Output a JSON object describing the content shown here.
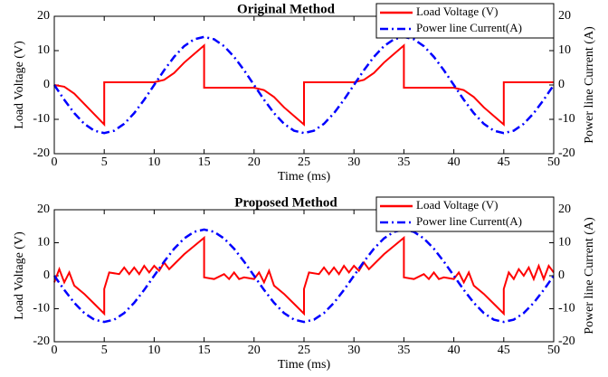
{
  "chart_data": [
    {
      "type": "line",
      "title": "Original Method",
      "xlabel": "Time (ms)",
      "ylabel": "Load Voltage (V)",
      "y2label": "Power line Current (A)",
      "xlim": [
        0,
        50
      ],
      "xticks": [
        0,
        5,
        10,
        15,
        20,
        25,
        30,
        35,
        40,
        45,
        50
      ],
      "ylim": [
        -20,
        20
      ],
      "yticks": [
        -20,
        -10,
        0,
        10,
        20
      ],
      "y2lim": [
        -20,
        20
      ],
      "y2ticks": [
        -20,
        -10,
        0,
        10,
        20
      ],
      "legend": "upper right",
      "series": [
        {
          "name": "Load Voltage (V)",
          "color": "#ff0000",
          "style": "solid",
          "x": [
            0,
            1,
            2,
            3,
            4,
            5,
            5,
            10,
            11,
            12,
            13,
            14,
            15,
            15,
            20,
            21,
            22,
            23,
            24,
            25,
            25,
            30,
            31,
            32,
            33,
            34,
            35,
            35,
            40,
            41,
            42,
            43,
            44,
            45,
            45,
            50
          ],
          "values": [
            0,
            -0.5,
            -2.5,
            -5.5,
            -8.5,
            -11.5,
            0.8,
            0.8,
            1.5,
            3.5,
            6.5,
            9,
            11.5,
            -0.8,
            -0.8,
            -1.5,
            -3.5,
            -6.5,
            -9,
            -11.5,
            0.8,
            0.8,
            1.5,
            3.5,
            6.5,
            9,
            11.5,
            -0.8,
            -0.8,
            -1.5,
            -3.5,
            -6.5,
            -9,
            -11.5,
            0.8,
            0.8
          ]
        },
        {
          "name": "Power line Current(A)",
          "color": "#0000ff",
          "style": "dashdot",
          "axis": "y2",
          "x": [
            0,
            1,
            2,
            3,
            4,
            5,
            6,
            7,
            8,
            9,
            10,
            11,
            12,
            13,
            14,
            15,
            16,
            17,
            18,
            19,
            20,
            21,
            22,
            23,
            24,
            25,
            26,
            27,
            28,
            29,
            30,
            31,
            32,
            33,
            34,
            35,
            36,
            37,
            38,
            39,
            40,
            41,
            42,
            43,
            44,
            45,
            46,
            47,
            48,
            49,
            50
          ],
          "values": [
            0,
            -4.3,
            -8.2,
            -11.3,
            -13.3,
            -14,
            -13.3,
            -11.3,
            -8.2,
            -4.3,
            0,
            4.3,
            8.2,
            11.3,
            13.3,
            14,
            13.3,
            11.3,
            8.2,
            4.3,
            0,
            -4.3,
            -8.2,
            -11.3,
            -13.3,
            -14,
            -13.3,
            -11.3,
            -8.2,
            -4.3,
            0,
            4.3,
            8.2,
            11.3,
            13.3,
            14,
            13.3,
            11.3,
            8.2,
            4.3,
            0,
            -4.3,
            -8.2,
            -11.3,
            -13.3,
            -14,
            -13.3,
            -11.3,
            -8.2,
            -4.3,
            0
          ]
        }
      ]
    },
    {
      "type": "line",
      "title": "Proposed Method",
      "xlabel": "Time (ms)",
      "ylabel": "Load Voltage (V)",
      "y2label": "Power line Current (A)",
      "xlim": [
        0,
        50
      ],
      "xticks": [
        0,
        5,
        10,
        15,
        20,
        25,
        30,
        35,
        40,
        45,
        50
      ],
      "ylim": [
        -20,
        20
      ],
      "yticks": [
        -20,
        -10,
        0,
        10,
        20
      ],
      "y2lim": [
        -20,
        20
      ],
      "y2ticks": [
        -20,
        -10,
        0,
        10,
        20
      ],
      "legend": "upper right",
      "series": [
        {
          "name": "Load Voltage (V)",
          "color": "#ff0000",
          "style": "solid",
          "x": [
            0,
            0.5,
            1,
            1.5,
            2,
            3,
            4,
            5,
            5,
            5.5,
            6.5,
            7,
            7.5,
            8,
            8.5,
            9,
            9.5,
            10,
            10.5,
            11,
            11.5,
            12,
            13,
            14,
            15,
            15,
            16,
            17,
            17.5,
            18,
            18.5,
            19,
            20,
            20.5,
            21,
            21.5,
            22,
            23,
            24,
            25,
            25,
            25.5,
            26.5,
            27,
            27.5,
            28,
            28.5,
            29,
            29.5,
            30,
            30.5,
            31,
            31.5,
            32,
            33,
            34,
            35,
            35,
            36,
            37,
            37.5,
            38,
            38.5,
            39,
            40,
            40.5,
            41,
            41.5,
            42,
            43,
            44,
            45,
            45,
            45.5,
            46,
            46.5,
            47,
            47.5,
            48,
            48.5,
            49,
            49.5,
            50
          ],
          "values": [
            -2,
            2,
            -2,
            1,
            -3,
            -5.5,
            -8.5,
            -11.5,
            -4,
            1,
            0.5,
            2.5,
            0.5,
            2.5,
            0.5,
            3,
            1,
            3,
            1.5,
            4,
            2,
            3.5,
            6.5,
            9,
            11.5,
            -0.5,
            -1,
            0.5,
            -1,
            1,
            -1,
            -0.5,
            -1,
            1,
            -2,
            1.5,
            -3,
            -5.5,
            -8.5,
            -11.5,
            -4,
            1,
            0.5,
            2.5,
            0.5,
            2.5,
            0.5,
            3,
            1,
            3,
            1.5,
            4,
            2,
            3.5,
            6.5,
            9,
            11.5,
            -0.5,
            -1,
            0.5,
            -1,
            1,
            -1,
            -0.5,
            -1,
            1,
            -2,
            1,
            -3,
            -5.5,
            -8.5,
            -11.5,
            -4,
            1,
            -1,
            2,
            0,
            2.5,
            -1,
            3,
            -1,
            3,
            1
          ]
        },
        {
          "name": "Power line Current(A)",
          "color": "#0000ff",
          "style": "dashdot",
          "axis": "y2",
          "x": [
            0,
            1,
            2,
            3,
            4,
            5,
            6,
            7,
            8,
            9,
            10,
            11,
            12,
            13,
            14,
            15,
            16,
            17,
            18,
            19,
            20,
            21,
            22,
            23,
            24,
            25,
            26,
            27,
            28,
            29,
            30,
            31,
            32,
            33,
            34,
            35,
            36,
            37,
            38,
            39,
            40,
            41,
            42,
            43,
            44,
            45,
            46,
            47,
            48,
            49,
            50
          ],
          "values": [
            0,
            -4.3,
            -8.2,
            -11.3,
            -13.3,
            -14,
            -13.3,
            -11.3,
            -8.2,
            -4.3,
            0,
            4.3,
            8.2,
            11.3,
            13.3,
            14,
            13.3,
            11.3,
            8.2,
            4.3,
            0,
            -4.3,
            -8.2,
            -11.3,
            -13.3,
            -14,
            -13.3,
            -11.3,
            -8.2,
            -4.3,
            0,
            4.3,
            8.2,
            11.3,
            13.3,
            14,
            13.3,
            11.3,
            8.2,
            4.3,
            0,
            -4.3,
            -8.2,
            -11.3,
            -13.3,
            -14,
            -13.3,
            -11.3,
            -8.2,
            -4.3,
            0
          ]
        }
      ]
    }
  ]
}
